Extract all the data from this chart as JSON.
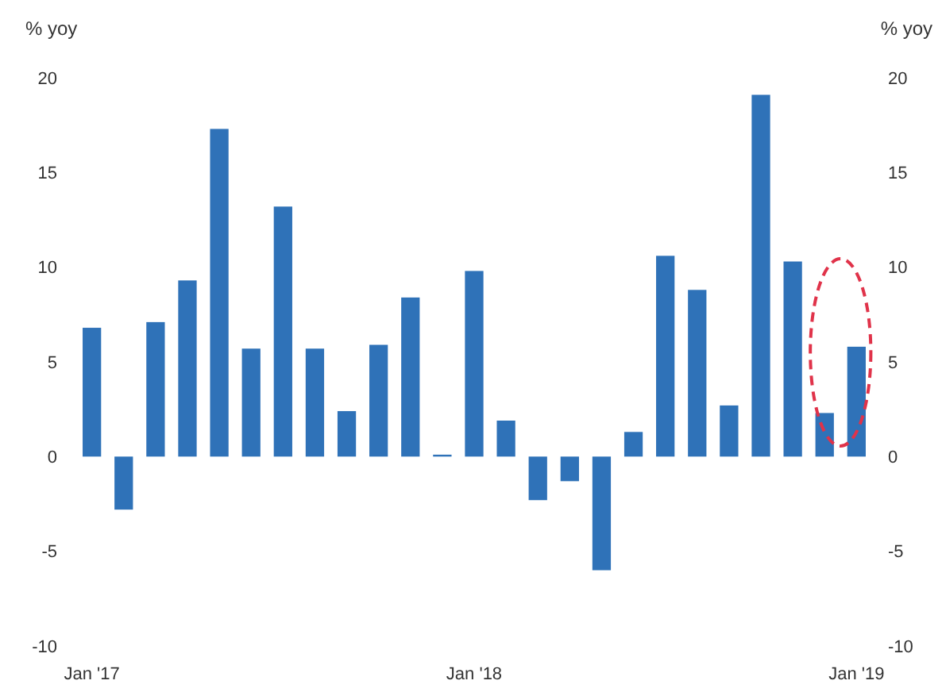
{
  "chart_data": {
    "type": "bar",
    "categories": [
      "Jan '17",
      null,
      null,
      null,
      null,
      null,
      null,
      null,
      null,
      null,
      null,
      null,
      "Jan '18",
      null,
      null,
      null,
      null,
      null,
      null,
      null,
      null,
      null,
      null,
      null,
      "Jan '19"
    ],
    "values": [
      6.8,
      -2.8,
      7.1,
      9.3,
      17.3,
      5.7,
      13.2,
      5.7,
      2.4,
      5.9,
      8.4,
      0.1,
      9.8,
      1.9,
      -2.3,
      -1.3,
      -6.0,
      1.3,
      10.6,
      8.8,
      2.7,
      19.1,
      10.3,
      2.3,
      5.8
    ],
    "color": "#2f72b8",
    "ylabel": "% yoy",
    "y2label": "% yoy",
    "ylim": [
      -10,
      20
    ],
    "yticks": [
      -10,
      -5,
      0,
      5,
      10,
      15,
      20
    ],
    "y2lim": [
      -10,
      20
    ],
    "y2ticks": [
      -10,
      -5,
      0,
      5,
      10,
      15,
      20
    ],
    "grid": false,
    "legend": false
  }
}
